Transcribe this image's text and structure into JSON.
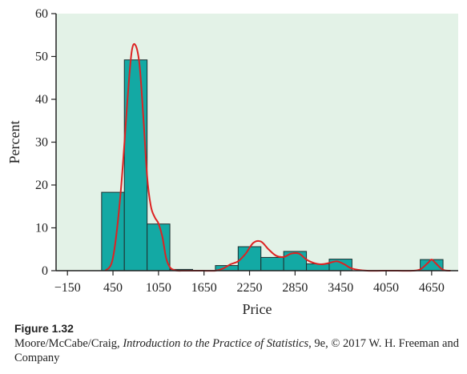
{
  "chart_data": {
    "type": "bar",
    "xlabel": "Price",
    "ylabel": "Percent",
    "xlim": [
      -300,
      5000
    ],
    "ylim": [
      0,
      60
    ],
    "xticks": [
      -150,
      450,
      1050,
      1650,
      2250,
      2850,
      3450,
      4050,
      4650
    ],
    "xtick_labels": [
      "−150",
      "450",
      "1050",
      "1650",
      "2250",
      "2850",
      "3450",
      "4050",
      "4650"
    ],
    "yticks": [
      0,
      10,
      20,
      30,
      40,
      50,
      60
    ],
    "bins": [
      {
        "x0": 300,
        "x1": 600,
        "value": 18.3
      },
      {
        "x0": 600,
        "x1": 900,
        "value": 49.2
      },
      {
        "x0": 900,
        "x1": 1200,
        "value": 10.9
      },
      {
        "x0": 1200,
        "x1": 1500,
        "value": 0.3
      },
      {
        "x0": 1800,
        "x1": 2100,
        "value": 1.2
      },
      {
        "x0": 2100,
        "x1": 2400,
        "value": 5.6
      },
      {
        "x0": 2400,
        "x1": 2700,
        "value": 3.1
      },
      {
        "x0": 2700,
        "x1": 3000,
        "value": 4.5
      },
      {
        "x0": 3000,
        "x1": 3300,
        "value": 1.6
      },
      {
        "x0": 3300,
        "x1": 3600,
        "value": 2.7
      },
      {
        "x0": 4500,
        "x1": 4800,
        "value": 2.6
      }
    ],
    "density_curve": {
      "x": [
        350,
        450,
        550,
        650,
        700,
        750,
        800,
        850,
        900,
        950,
        1000,
        1050,
        1100,
        1150,
        1200,
        1250,
        1300,
        1400,
        1600,
        1800,
        1900,
        2000,
        2100,
        2200,
        2300,
        2400,
        2500,
        2600,
        2700,
        2800,
        2900,
        3000,
        3100,
        3200,
        3300,
        3400,
        3500,
        3600,
        3800,
        4000,
        4200,
        4400,
        4500,
        4600,
        4650,
        4700,
        4800,
        4900
      ],
      "y": [
        0,
        3,
        18,
        42,
        51.5,
        52.5,
        48,
        36,
        22,
        15,
        12.5,
        11,
        8,
        3,
        0.8,
        0.2,
        0,
        0,
        0,
        0,
        0.5,
        1.5,
        2.2,
        4,
        6.5,
        6.8,
        5,
        3.5,
        3.2,
        4,
        4,
        2.6,
        1.8,
        1.5,
        1.8,
        2.2,
        1.5,
        0.5,
        0,
        0,
        0,
        0,
        0.3,
        1.8,
        2.6,
        1.8,
        0.2,
        0
      ],
      "color": "#dd2222"
    },
    "colors": {
      "bar": "#13a9a4",
      "bar_edge": "#1f2f30",
      "plot_bg": "#e3f2e7",
      "curve": "#dd2222"
    }
  },
  "caption": {
    "figure_label": "Figure 1.32",
    "credit_pre": "Moore/McCabe/Craig, ",
    "credit_title": "Introduction to the Practice of Statistics",
    "credit_post": ", 9e, © 2017 W. H. Freeman and Company"
  }
}
